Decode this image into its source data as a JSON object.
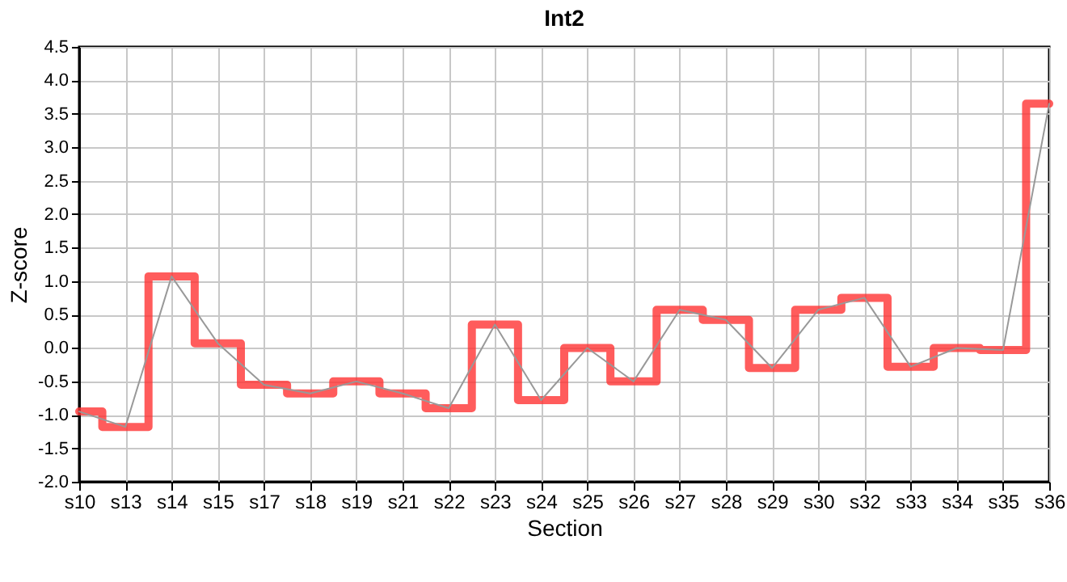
{
  "chart_data": {
    "type": "line",
    "title": "Int2",
    "xlabel": "Section",
    "ylabel": "Z-score",
    "categories": [
      "s10",
      "s13",
      "s14",
      "s15",
      "s17",
      "s18",
      "s19",
      "s21",
      "s22",
      "s23",
      "s24",
      "s25",
      "s26",
      "s27",
      "s28",
      "s29",
      "s30",
      "s32",
      "s33",
      "s34",
      "s35",
      "s36"
    ],
    "series": [
      {
        "type": "step",
        "color": "#ff3333",
        "values": [
          -0.95,
          -1.18,
          1.07,
          0.07,
          -0.55,
          -0.68,
          -0.5,
          -0.68,
          -0.9,
          0.35,
          -0.78,
          0.0,
          -0.5,
          0.57,
          0.42,
          -0.3,
          0.57,
          0.75,
          -0.28,
          0.0,
          -0.03,
          3.65
        ]
      },
      {
        "type": "line",
        "color": "#999999",
        "values": [
          -0.95,
          -1.18,
          1.07,
          0.07,
          -0.55,
          -0.68,
          -0.5,
          -0.68,
          -0.9,
          0.35,
          -0.78,
          0.0,
          -0.5,
          0.57,
          0.42,
          -0.3,
          0.57,
          0.75,
          -0.28,
          0.0,
          -0.03,
          3.65
        ]
      }
    ],
    "ylim": [
      -2.0,
      4.5
    ],
    "yticks": [
      {
        "value": -2,
        "label": "-2.0"
      },
      {
        "value": -1.5,
        "label": "-1.5"
      },
      {
        "value": -1,
        "label": "-1.0"
      },
      {
        "value": -0.5,
        "label": "-0.5"
      },
      {
        "value": 0,
        "label": "0.0"
      },
      {
        "value": 0.5,
        "label": "0.5"
      },
      {
        "value": 1,
        "label": "1.0"
      },
      {
        "value": 1.5,
        "label": "1.5"
      },
      {
        "value": 2,
        "label": "2.0"
      },
      {
        "value": 2.5,
        "label": "2.5"
      },
      {
        "value": 3,
        "label": "3.0"
      },
      {
        "value": 3.5,
        "label": "3.5"
      },
      {
        "value": 4,
        "label": "4.0"
      },
      {
        "value": 4.5,
        "label": "4.5"
      }
    ],
    "grid": true,
    "marker": "none",
    "line_style": "solid"
  }
}
